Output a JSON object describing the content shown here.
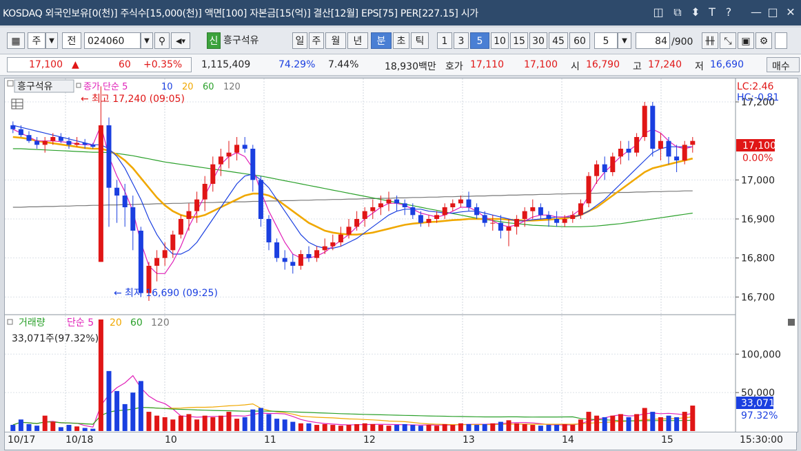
{
  "title": "KOSDAQ 외국인보유[0(천)] 주식수[15,000(천)] 액면[100] 자본금[15(억)] 결산[12월] EPS[75] PER[227.15] 시가",
  "window_controls": [
    "layout-icon",
    "popout-icon",
    "pin-icon",
    "font-icon",
    "help-icon",
    "minimize-icon",
    "maximize-icon",
    "close-icon"
  ],
  "window_glyphs": {
    "layout": "◫",
    "popout": "⧉",
    "pin": "⬍",
    "font": "T",
    "help": "?",
    "minimize": "—",
    "maximize": "□",
    "close": "✕"
  },
  "toolbar": {
    "period_selector": "주",
    "ref_label": "전",
    "code": "024060",
    "badge": "신",
    "stock_name": "흥구석유",
    "period_buttons": [
      "일",
      "주",
      "월",
      "년",
      "분",
      "초",
      "틱"
    ],
    "selected_period": "분",
    "intervals": [
      "1",
      "3",
      "5",
      "10",
      "15",
      "30",
      "45",
      "60"
    ],
    "selected_interval": "5",
    "interval_input": "5",
    "count_value": "84",
    "count_total": "/900"
  },
  "info": {
    "price": "17,100",
    "up_marker": "▲",
    "change": "60",
    "change_pct": "+0.35%",
    "volume": "1,115,409",
    "ratio1": "74.29%",
    "ratio2": "7.44%",
    "amount": "18,930백만",
    "quote_label": "호가",
    "ask": "17,110",
    "bid": "17,100",
    "open_label": "시",
    "open": "16,790",
    "high_label": "고",
    "high": "17,240",
    "low_label": "저",
    "low": "16,690",
    "buy_button": "매수"
  },
  "price_panel": {
    "legend_name": "흥구석유",
    "legend_ma_label": "종가 단순 5",
    "legend_ma": [
      "10",
      "20",
      "60",
      "120"
    ],
    "high_annotation": "최고 17,240 (09:05)",
    "low_annotation": "최저 16,690 (09:25)",
    "lc_label": "LC:2.46",
    "hc_label": "HC:-0.81",
    "current_price_label": "17,100",
    "current_change_label": "0.00%"
  },
  "volume_panel": {
    "legend_name": "거래량",
    "legend_ma_label": "단순 5",
    "legend_ma": [
      "20",
      "60",
      "120"
    ],
    "info_line": "33,071주(97.32%)",
    "current_volume_label": "33,071",
    "current_volume_pct": "97.32%"
  },
  "chart_data": {
    "type": "candlestick",
    "interval": "5분",
    "y_axis_ticks": [
      "17,200",
      "17,000",
      "16,900",
      "16,800",
      "16,700"
    ],
    "y_range": [
      16660,
      17260
    ],
    "volume_axis_ticks": [
      "100,000",
      "50,000"
    ],
    "volume_range": [
      0,
      145000
    ],
    "x_date_labels": [
      "10/17",
      "10/18",
      "10",
      "11",
      "12",
      "13",
      "14",
      "15"
    ],
    "time_label": "15:30:00",
    "colors": {
      "up": "#e01616",
      "down": "#1a3fe0",
      "ma5": "#e020b8",
      "ma10": "#1a3fe0",
      "ma20": "#f0a800",
      "ma60": "#2aa02a",
      "ma120": "#777777"
    },
    "candles": [
      [
        17140,
        17150,
        17120,
        17130,
        8000
      ],
      [
        17130,
        17140,
        17110,
        17115,
        15000
      ],
      [
        17115,
        17125,
        17095,
        17100,
        9000
      ],
      [
        17100,
        17110,
        17080,
        17090,
        7000
      ],
      [
        17090,
        17110,
        17070,
        17100,
        20000
      ],
      [
        17100,
        17120,
        17090,
        17110,
        12000
      ],
      [
        17110,
        17120,
        17095,
        17100,
        5000
      ],
      [
        17100,
        17110,
        17080,
        17090,
        8000
      ],
      [
        17090,
        17110,
        17085,
        17095,
        6000
      ],
      [
        17095,
        17105,
        17080,
        17090,
        4000
      ],
      [
        17090,
        17095,
        17080,
        17085,
        3000
      ],
      [
        16790,
        17240,
        16790,
        17140,
        145000
      ],
      [
        17140,
        17160,
        16880,
        16980,
        78000
      ],
      [
        16980,
        17000,
        16890,
        16960,
        52000
      ],
      [
        16960,
        16990,
        16880,
        16930,
        35000
      ],
      [
        16930,
        16960,
        16820,
        16870,
        50000
      ],
      [
        16870,
        16880,
        16700,
        16710,
        65000
      ],
      [
        16710,
        16790,
        16690,
        16780,
        25000
      ],
      [
        16780,
        16820,
        16740,
        16800,
        20000
      ],
      [
        16800,
        16840,
        16780,
        16820,
        18000
      ],
      [
        16820,
        16870,
        16800,
        16860,
        15000
      ],
      [
        16860,
        16910,
        16850,
        16900,
        20000
      ],
      [
        16900,
        16940,
        16870,
        16920,
        22000
      ],
      [
        16920,
        16970,
        16890,
        16950,
        15000
      ],
      [
        16950,
        17010,
        16920,
        16990,
        20000
      ],
      [
        16990,
        17060,
        16970,
        17040,
        18000
      ],
      [
        17040,
        17080,
        17010,
        17060,
        20000
      ],
      [
        17060,
        17100,
        17030,
        17070,
        25000
      ],
      [
        17070,
        17110,
        17050,
        17090,
        16000
      ],
      [
        17090,
        17110,
        17070,
        17080,
        18000
      ],
      [
        17080,
        17090,
        16970,
        17000,
        28000
      ],
      [
        17000,
        17010,
        16880,
        16900,
        30000
      ],
      [
        16900,
        16910,
        16820,
        16840,
        22000
      ],
      [
        16840,
        16850,
        16790,
        16800,
        16000
      ],
      [
        16800,
        16820,
        16770,
        16790,
        15000
      ],
      [
        16790,
        16810,
        16760,
        16780,
        12000
      ],
      [
        16780,
        16820,
        16770,
        16810,
        10000
      ],
      [
        16810,
        16830,
        16790,
        16800,
        10000
      ],
      [
        16800,
        16830,
        16790,
        16820,
        8000
      ],
      [
        16820,
        16850,
        16810,
        16830,
        9000
      ],
      [
        16830,
        16860,
        16820,
        16840,
        8000
      ],
      [
        16840,
        16880,
        16830,
        16860,
        7000
      ],
      [
        16860,
        16900,
        16850,
        16880,
        8000
      ],
      [
        16880,
        16920,
        16870,
        16900,
        9000
      ],
      [
        16900,
        16930,
        16880,
        16920,
        10000
      ],
      [
        16920,
        16950,
        16900,
        16930,
        9000
      ],
      [
        16930,
        16960,
        16910,
        16940,
        8000
      ],
      [
        16940,
        16970,
        16920,
        16950,
        7000
      ],
      [
        16950,
        16960,
        16920,
        16940,
        8000
      ],
      [
        16940,
        16950,
        16910,
        16930,
        9000
      ],
      [
        16930,
        16940,
        16900,
        16910,
        8000
      ],
      [
        16910,
        16920,
        16880,
        16890,
        7000
      ],
      [
        16890,
        16910,
        16880,
        16900,
        8000
      ],
      [
        16900,
        16920,
        16890,
        16910,
        7000
      ],
      [
        16910,
        16940,
        16900,
        16930,
        9000
      ],
      [
        16930,
        16950,
        16920,
        16940,
        8000
      ],
      [
        16940,
        16960,
        16930,
        16950,
        10000
      ],
      [
        16950,
        16970,
        16920,
        16930,
        9000
      ],
      [
        16930,
        16940,
        16900,
        16910,
        8000
      ],
      [
        16910,
        16920,
        16880,
        16890,
        9000
      ],
      [
        16890,
        16910,
        16870,
        16890,
        10000
      ],
      [
        16890,
        16910,
        16850,
        16870,
        12000
      ],
      [
        16870,
        16900,
        16830,
        16880,
        14000
      ],
      [
        16880,
        16910,
        16860,
        16900,
        10000
      ],
      [
        16900,
        16930,
        16880,
        16920,
        9000
      ],
      [
        16920,
        16950,
        16900,
        16930,
        8000
      ],
      [
        16930,
        16940,
        16900,
        16910,
        7000
      ],
      [
        16910,
        16920,
        16880,
        16900,
        8000
      ],
      [
        16900,
        16920,
        16880,
        16890,
        8000
      ],
      [
        16890,
        16910,
        16880,
        16900,
        9000
      ],
      [
        16900,
        16920,
        16890,
        16910,
        8000
      ],
      [
        16910,
        16950,
        16900,
        16940,
        15000
      ],
      [
        16940,
        17020,
        16930,
        17010,
        25000
      ],
      [
        17010,
        17050,
        16990,
        17040,
        20000
      ],
      [
        17040,
        17060,
        17000,
        17020,
        18000
      ],
      [
        17020,
        17070,
        17010,
        17060,
        20000
      ],
      [
        17060,
        17100,
        17040,
        17080,
        22000
      ],
      [
        17080,
        17100,
        17050,
        17070,
        18000
      ],
      [
        17070,
        17120,
        17060,
        17110,
        22000
      ],
      [
        17110,
        17200,
        17100,
        17190,
        30000
      ],
      [
        17190,
        17200,
        17060,
        17080,
        25000
      ],
      [
        17080,
        17120,
        17050,
        17100,
        18000
      ],
      [
        17100,
        17110,
        17040,
        17060,
        20000
      ],
      [
        17060,
        17090,
        17020,
        17050,
        18000
      ],
      [
        17050,
        17100,
        17040,
        17090,
        25000
      ],
      [
        17090,
        17110,
        17070,
        17100,
        33071
      ]
    ],
    "moving_averages": {
      "ma5": [
        17130,
        17120,
        17110,
        17100,
        17100,
        17100,
        17098,
        17096,
        17092,
        17090,
        17090,
        17140,
        17060,
        17010,
        16970,
        16920,
        16840,
        16780,
        16760,
        16760,
        16790,
        16830,
        16880,
        16920,
        16960,
        17000,
        17040,
        17060,
        17070,
        17060,
        17030,
        16970,
        16920,
        16880,
        16840,
        16810,
        16800,
        16800,
        16805,
        16815,
        16830,
        16845,
        16860,
        16880,
        16900,
        16915,
        16930,
        16940,
        16940,
        16935,
        16925,
        16915,
        16910,
        16905,
        16910,
        16920,
        16930,
        16930,
        16920,
        16905,
        16895,
        16885,
        16880,
        16885,
        16895,
        16905,
        16910,
        16910,
        16905,
        16905,
        16910,
        16925,
        16960,
        16995,
        17020,
        17040,
        17060,
        17075,
        17090,
        17120,
        17130,
        17120,
        17100,
        17085,
        17080,
        17085
      ],
      "ma10": [
        17140,
        17135,
        17130,
        17125,
        17120,
        17115,
        17110,
        17105,
        17100,
        17095,
        17090,
        17090,
        17080,
        17060,
        17030,
        16990,
        16950,
        16900,
        16860,
        16830,
        16810,
        16810,
        16820,
        16840,
        16870,
        16900,
        16930,
        16960,
        16990,
        17010,
        17015,
        17000,
        16980,
        16950,
        16920,
        16890,
        16860,
        16840,
        16830,
        16825,
        16825,
        16830,
        16840,
        16850,
        16865,
        16880,
        16895,
        16910,
        16920,
        16925,
        16925,
        16925,
        16920,
        16918,
        16915,
        16915,
        16918,
        16920,
        16920,
        16915,
        16910,
        16905,
        16900,
        16895,
        16895,
        16898,
        16900,
        16902,
        16905,
        16905,
        16905,
        16910,
        16920,
        16935,
        16950,
        16970,
        16990,
        17010,
        17030,
        17050,
        17070,
        17080,
        17085,
        17085,
        17085,
        17085
      ],
      "ma20": [
        17110,
        17108,
        17105,
        17100,
        17097,
        17094,
        17091,
        17088,
        17085,
        17082,
        17080,
        17080,
        17075,
        17065,
        17050,
        17030,
        17005,
        16980,
        16955,
        16935,
        16920,
        16910,
        16905,
        16905,
        16910,
        16920,
        16930,
        16940,
        16950,
        16960,
        16965,
        16965,
        16960,
        16950,
        16935,
        16920,
        16905,
        16890,
        16880,
        16870,
        16865,
        16862,
        16860,
        16860,
        16862,
        16865,
        16870,
        16875,
        16880,
        16885,
        16888,
        16890,
        16892,
        16893,
        16895,
        16897,
        16898,
        16900,
        16900,
        16900,
        16900,
        16900,
        16898,
        16897,
        16896,
        16896,
        16897,
        16898,
        16900,
        16902,
        16905,
        16910,
        16920,
        16930,
        16945,
        16960,
        16975,
        16990,
        17005,
        17020,
        17030,
        17035,
        17040,
        17045,
        17050,
        17055
      ],
      "ma60": [
        17080,
        17080,
        17079,
        17078,
        17077,
        17076,
        17075,
        17074,
        17073,
        17072,
        17071,
        17071,
        17070,
        17068,
        17065,
        17062,
        17058,
        17054,
        17050,
        17046,
        17043,
        17040,
        17037,
        17034,
        17031,
        17028,
        17025,
        17022,
        17019,
        17016,
        17013,
        17010,
        17006,
        17002,
        16998,
        16994,
        16990,
        16986,
        16982,
        16978,
        16974,
        16970,
        16966,
        16962,
        16958,
        16954,
        16950,
        16946,
        16942,
        16938,
        16934,
        16930,
        16926,
        16922,
        16918,
        16914,
        16910,
        16906,
        16902,
        16899,
        16896,
        16893,
        16890,
        16888,
        16886,
        16884,
        16883,
        16882,
        16881,
        16880,
        16880,
        16880,
        16881,
        16882,
        16884,
        16886,
        16888,
        16891,
        16894,
        16897,
        16900,
        16903,
        16906,
        16909,
        16912,
        16915
      ],
      "ma120": [
        16930,
        16930,
        16931,
        16931,
        16932,
        16932,
        16933,
        16933,
        16934,
        16934,
        16935,
        16935,
        16936,
        16936,
        16937,
        16937,
        16938,
        16938,
        16939,
        16939,
        16940,
        16940,
        16941,
        16941,
        16942,
        16942,
        16943,
        16943,
        16944,
        16944,
        16945,
        16945,
        16946,
        16946,
        16947,
        16947,
        16948,
        16948,
        16949,
        16949,
        16950,
        16950,
        16951,
        16951,
        16952,
        16952,
        16953,
        16953,
        16954,
        16954,
        16955,
        16955,
        16956,
        16956,
        16957,
        16957,
        16958,
        16958,
        16959,
        16959,
        16960,
        16960,
        16961,
        16961,
        16962,
        16962,
        16963,
        16963,
        16964,
        16964,
        16965,
        16965,
        16966,
        16966,
        16967,
        16967,
        16968,
        16968,
        16969,
        16969,
        16970,
        16970,
        16971,
        16971,
        16972,
        16972
      ]
    }
  }
}
